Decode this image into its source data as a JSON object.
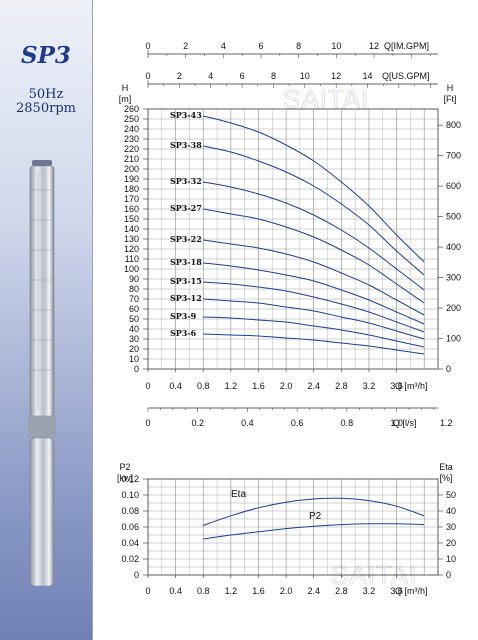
{
  "sidebar": {
    "model": "SP3",
    "frequency": "50Hz",
    "speed": "2850rpm"
  },
  "watermark": "SAITAI",
  "colors": {
    "curve": "#1b3f8f",
    "grid": "#8a8a8a",
    "sidebar_accent": "#1f3a8a"
  },
  "chart_data": [
    {
      "type": "line",
      "ylabel_left": "H\n[m]",
      "ylabel_right": "H\n[Ft]",
      "xlabel": "Q [m³/h]",
      "xlim": [
        0,
        4.2
      ],
      "x_ticks": [
        "0",
        "0.4",
        "0.8",
        "1.2",
        "1.6",
        "2.0",
        "2.4",
        "2.8",
        "3.2",
        "3.6"
      ],
      "ylim": [
        0,
        260
      ],
      "y_ticks": [
        "0",
        "10",
        "20",
        "30",
        "40",
        "50",
        "60",
        "70",
        "80",
        "90",
        "100",
        "110",
        "120",
        "130",
        "140",
        "150",
        "160",
        "170",
        "180",
        "190",
        "200",
        "210",
        "220",
        "230",
        "240",
        "250",
        "260"
      ],
      "y_right_ticks": [
        "0",
        "100",
        "200",
        "300",
        "400",
        "500",
        "600",
        "700",
        "800"
      ],
      "top_axes": [
        {
          "label": "Q[IM.GPM]",
          "ticks": [
            "0",
            "2",
            "4",
            "6",
            "8",
            "10",
            "12"
          ]
        },
        {
          "label": "Q[US.GPM]",
          "ticks": [
            "0",
            "2",
            "4",
            "6",
            "8",
            "10",
            "12",
            "14"
          ]
        }
      ],
      "bottom_axis": {
        "label": "Q [l/s]",
        "ticks": [
          "0",
          "0.2",
          "0.4",
          "0.6",
          "0.8",
          "1.0",
          "1.2"
        ]
      },
      "series": [
        {
          "name": "SP3-43",
          "x": [
            0.8,
            1.2,
            1.6,
            2.0,
            2.4,
            2.8,
            3.2,
            3.6,
            4.0
          ],
          "y": [
            253,
            246,
            237,
            224,
            208,
            187,
            163,
            134,
            107
          ]
        },
        {
          "name": "SP3-38",
          "x": [
            0.8,
            1.2,
            1.6,
            2.0,
            2.4,
            2.8,
            3.2,
            3.6,
            4.0
          ],
          "y": [
            223,
            217,
            208,
            197,
            183,
            165,
            144,
            118,
            94
          ]
        },
        {
          "name": "SP3-32",
          "x": [
            0.8,
            1.2,
            1.6,
            2.0,
            2.4,
            2.8,
            3.2,
            3.6,
            4.0
          ],
          "y": [
            187,
            182,
            175,
            166,
            154,
            139,
            121,
            100,
            79
          ]
        },
        {
          "name": "SP3-27",
          "x": [
            0.8,
            1.2,
            1.6,
            2.0,
            2.4,
            2.8,
            3.2,
            3.6,
            4.0
          ],
          "y": [
            160,
            155,
            150,
            142,
            132,
            119,
            104,
            85,
            66
          ]
        },
        {
          "name": "SP3-22",
          "x": [
            0.8,
            1.2,
            1.6,
            2.0,
            2.4,
            2.8,
            3.2,
            3.6,
            4.0
          ],
          "y": [
            129,
            125,
            121,
            115,
            107,
            96,
            84,
            69,
            54
          ]
        },
        {
          "name": "SP3-18",
          "x": [
            0.8,
            1.2,
            1.6,
            2.0,
            2.4,
            2.8,
            3.2,
            3.6,
            4.0
          ],
          "y": [
            106,
            103,
            99,
            94,
            88,
            79,
            69,
            57,
            45
          ]
        },
        {
          "name": "SP3-15",
          "x": [
            0.8,
            1.2,
            1.6,
            2.0,
            2.4,
            2.8,
            3.2,
            3.6,
            4.0
          ],
          "y": [
            87,
            85,
            82,
            78,
            72,
            65,
            57,
            47,
            37
          ]
        },
        {
          "name": "SP3-12",
          "x": [
            0.8,
            1.2,
            1.6,
            2.0,
            2.4,
            2.8,
            3.2,
            3.6,
            4.0
          ],
          "y": [
            70,
            68,
            66,
            62,
            58,
            52,
            46,
            38,
            30
          ]
        },
        {
          "name": "SP3-9",
          "x": [
            0.8,
            1.2,
            1.6,
            2.0,
            2.4,
            2.8,
            3.2,
            3.6,
            4.0
          ],
          "y": [
            52,
            51,
            49,
            47,
            43,
            39,
            34,
            28,
            22
          ]
        },
        {
          "name": "SP3-6",
          "x": [
            0.8,
            1.2,
            1.6,
            2.0,
            2.4,
            2.8,
            3.2,
            3.6,
            4.0
          ],
          "y": [
            35,
            34,
            33,
            31,
            29,
            26,
            23,
            19,
            15
          ]
        }
      ]
    },
    {
      "type": "line",
      "ylabel_left": "P2\n[kw]",
      "ylabel_right": "Eta\n[%]",
      "xlabel": "Q [m³/h]",
      "xlim": [
        0,
        4.2
      ],
      "x_ticks": [
        "0",
        "0.4",
        "0.8",
        "1.2",
        "1.6",
        "2.0",
        "2.4",
        "2.8",
        "3.2",
        "3.6"
      ],
      "ylim": [
        0,
        0.12
      ],
      "y_ticks": [
        "0",
        "0.02",
        "0.04",
        "0.06",
        "0.08",
        "0.10",
        "0.12"
      ],
      "y_right_ticks": [
        "0",
        "10",
        "20",
        "30",
        "40",
        "50"
      ],
      "series": [
        {
          "name": "Eta",
          "axis": "right",
          "x": [
            0.8,
            1.2,
            1.6,
            2.0,
            2.4,
            2.8,
            3.2,
            3.6,
            4.0
          ],
          "y": [
            31,
            37,
            42,
            45.5,
            47.5,
            48,
            46.5,
            43,
            37
          ]
        },
        {
          "name": "P2",
          "axis": "left",
          "x": [
            0.8,
            1.2,
            1.6,
            2.0,
            2.4,
            2.8,
            3.2,
            3.6,
            4.0
          ],
          "y": [
            0.045,
            0.05,
            0.054,
            0.058,
            0.061,
            0.063,
            0.064,
            0.064,
            0.063
          ]
        }
      ]
    }
  ]
}
